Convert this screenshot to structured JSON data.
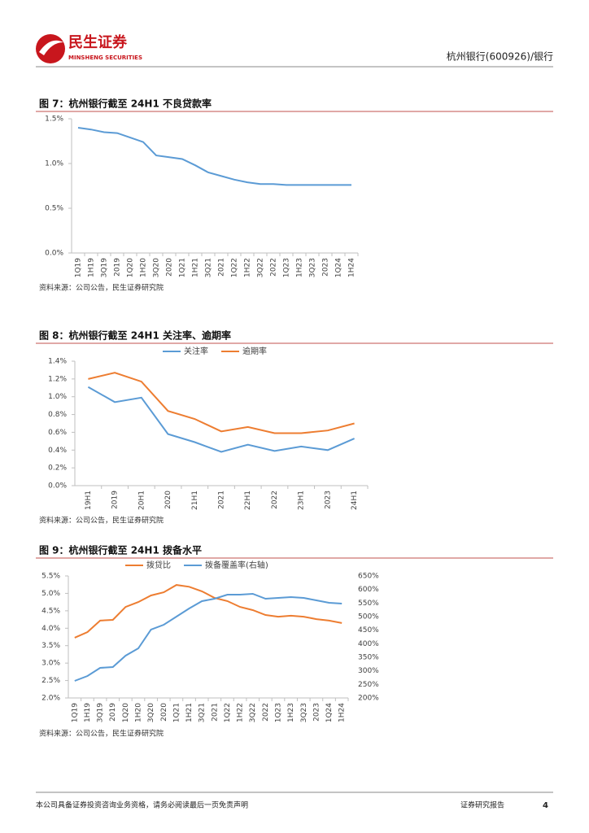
{
  "header": {
    "logo_cn": "民生证券",
    "logo_en": "MINSHENG SECURITIES",
    "report": "杭州银行(600926)/银行"
  },
  "chart_data": [
    {
      "type": "line",
      "title": "图 7：杭州银行截至 24H1 不良贷款率",
      "categories": [
        "1Q19",
        "1H19",
        "3Q19",
        "2019",
        "1Q20",
        "1H20",
        "3Q20",
        "2020",
        "1Q21",
        "1H21",
        "3Q21",
        "2021",
        "1Q22",
        "1H22",
        "3Q22",
        "2022",
        "1Q23",
        "1H23",
        "3Q23",
        "2023",
        "1Q24",
        "1H24"
      ],
      "values": [
        1.4,
        1.38,
        1.35,
        1.34,
        1.29,
        1.24,
        1.09,
        1.07,
        1.05,
        0.98,
        0.9,
        0.86,
        0.82,
        0.79,
        0.77,
        0.77,
        0.76,
        0.76,
        0.76,
        0.76,
        0.76,
        0.76
      ],
      "color": "#5b9bd5",
      "ylim": [
        0,
        1.5
      ],
      "yticks": [
        {
          "value": 0,
          "label": "0.0%"
        },
        {
          "value": 0.5,
          "label": "0.5%"
        },
        {
          "value": 1.0,
          "label": "1.0%"
        },
        {
          "value": 1.5,
          "label": "1.5%"
        }
      ],
      "source": "资料来源：公司公告，民生证券研究院"
    },
    {
      "type": "line",
      "title": "图 8：杭州银行截至 24H1 关注率、逾期率",
      "categories": [
        "19H1",
        "2019",
        "20H1",
        "2020",
        "21H1",
        "2021",
        "22H1",
        "2022",
        "23H1",
        "2023",
        "24H1"
      ],
      "series": [
        {
          "name": "关注率",
          "color": "#5b9bd5",
          "values": [
            1.11,
            0.94,
            0.99,
            0.58,
            0.49,
            0.38,
            0.46,
            0.39,
            0.44,
            0.4,
            0.53
          ]
        },
        {
          "name": "逾期率",
          "color": "#ed7d31",
          "values": [
            1.2,
            1.27,
            1.17,
            0.84,
            0.75,
            0.61,
            0.66,
            0.59,
            0.59,
            0.62,
            0.7
          ]
        }
      ],
      "ylim": [
        0,
        1.4
      ],
      "yticks": [
        {
          "value": 0,
          "label": "0.0%"
        },
        {
          "value": 0.2,
          "label": "0.2%"
        },
        {
          "value": 0.4,
          "label": "0.4%"
        },
        {
          "value": 0.6,
          "label": "0.6%"
        },
        {
          "value": 0.8,
          "label": "0.8%"
        },
        {
          "value": 1.0,
          "label": "1.0%"
        },
        {
          "value": 1.2,
          "label": "1.2%"
        },
        {
          "value": 1.4,
          "label": "1.4%"
        }
      ],
      "source": "资料来源：公司公告，民生证券研究院"
    },
    {
      "type": "line",
      "title": "图 9：杭州银行截至 24H1 拨备水平",
      "categories": [
        "1Q19",
        "1H19",
        "3Q19",
        "2019",
        "1Q20",
        "1H20",
        "3Q20",
        "2020",
        "1Q21",
        "1H21",
        "3Q21",
        "2021",
        "1Q22",
        "1H22",
        "3Q22",
        "2022",
        "1Q23",
        "1H23",
        "3Q23",
        "2023",
        "1Q24",
        "1H24"
      ],
      "series": [
        {
          "name": "拨贷比",
          "color": "#ed7d31",
          "values": [
            3.73,
            3.89,
            4.22,
            4.24,
            4.61,
            4.75,
            4.94,
            5.03,
            5.24,
            5.19,
            5.06,
            4.87,
            4.78,
            4.61,
            4.52,
            4.38,
            4.33,
            4.36,
            4.33,
            4.26,
            4.22,
            4.15
          ]
        },
        {
          "name": "拨备覆盖率(右轴)",
          "color": "#5b9bd5",
          "axis": "y2",
          "values": [
            263,
            281,
            311,
            314,
            356,
            383,
            452,
            470,
            500,
            530,
            557,
            566,
            581,
            581,
            584,
            566,
            569,
            572,
            569,
            560,
            551,
            548
          ]
        }
      ],
      "ylim": [
        2.0,
        5.5
      ],
      "yticks": [
        {
          "value": 2.0,
          "label": "2.0%"
        },
        {
          "value": 2.5,
          "label": "2.5%"
        },
        {
          "value": 3.0,
          "label": "3.0%"
        },
        {
          "value": 3.5,
          "label": "3.5%"
        },
        {
          "value": 4.0,
          "label": "4.0%"
        },
        {
          "value": 4.5,
          "label": "4.5%"
        },
        {
          "value": 5.0,
          "label": "5.0%"
        },
        {
          "value": 5.5,
          "label": "5.5%"
        }
      ],
      "y2lim": [
        200,
        650
      ],
      "y2ticks": [
        {
          "value": 200,
          "label": "200%"
        },
        {
          "value": 250,
          "label": "250%"
        },
        {
          "value": 300,
          "label": "300%"
        },
        {
          "value": 350,
          "label": "350%"
        },
        {
          "value": 400,
          "label": "400%"
        },
        {
          "value": 450,
          "label": "450%"
        },
        {
          "value": 500,
          "label": "500%"
        },
        {
          "value": 550,
          "label": "550%"
        },
        {
          "value": 600,
          "label": "600%"
        },
        {
          "value": 650,
          "label": "650%"
        }
      ],
      "source": "资料来源：公司公告，民生证券研究院"
    }
  ],
  "footer": {
    "disclaimer": "本公司具备证券投资咨询业务资格，请务必阅读最后一页免责声明",
    "type": "证券研究报告",
    "page": "4"
  }
}
